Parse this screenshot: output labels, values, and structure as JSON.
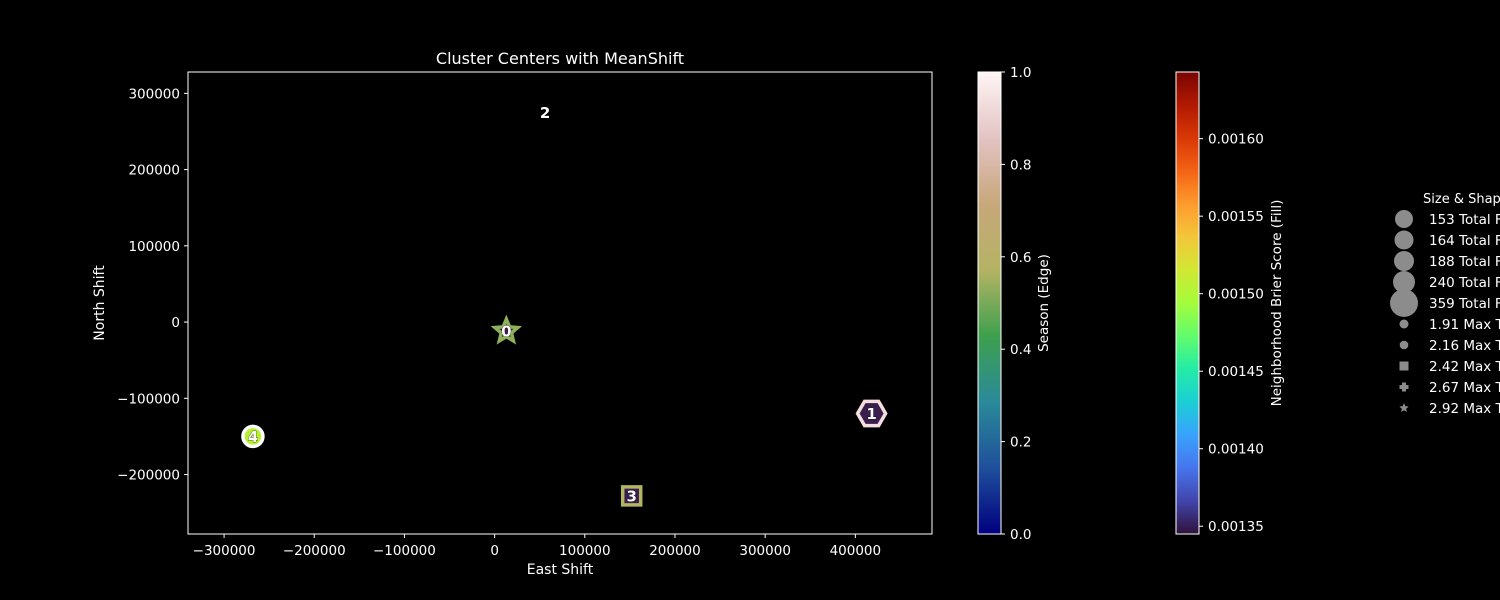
{
  "chart_data": {
    "type": "scatter",
    "title": "Cluster Centers with MeanShift",
    "xlabel": "East Shift",
    "ylabel": "North Shift",
    "xlim": [
      -340000,
      485000
    ],
    "ylim": [
      -278000,
      328000
    ],
    "x_ticks": [
      -300000,
      -200000,
      -100000,
      0,
      100000,
      200000,
      300000,
      400000
    ],
    "x_tick_labels": [
      "−300000",
      "−200000",
      "−100000",
      "0",
      "100000",
      "200000",
      "300000",
      "400000"
    ],
    "y_ticks": [
      -200000,
      -100000,
      0,
      100000,
      200000,
      300000
    ],
    "y_tick_labels": [
      "−200000",
      "−100000",
      "0",
      "100000",
      "200000",
      "300000"
    ],
    "grid": false,
    "points": [
      {
        "label": "0",
        "x": 13000,
        "y": -12000,
        "marker": "star",
        "edge_color": "#8fb15a",
        "fill_color": "#3a1e4e",
        "size": 12
      },
      {
        "label": "1",
        "x": 418000,
        "y": -120000,
        "marker": "hexagon",
        "edge_color": "#f4dede",
        "fill_color": "#3a1e4e",
        "size": 14
      },
      {
        "label": "2",
        "x": 56000,
        "y": 275000,
        "marker": "none",
        "edge_color": "#ffffff",
        "fill_color": "#ffffff",
        "size": 0
      },
      {
        "label": "3",
        "x": 152000,
        "y": -228000,
        "marker": "square",
        "edge_color": "#b1b460",
        "fill_color": "#3a1e4e",
        "size": 9
      },
      {
        "label": "4",
        "x": -268000,
        "y": -150000,
        "marker": "circle",
        "edge_color": "#ffffff",
        "fill_color": "#b6f02e",
        "size": 10
      }
    ],
    "colorbars": [
      {
        "label": "Season (Edge)",
        "ticks": [
          "0.0",
          "0.2",
          "0.4",
          "0.6",
          "0.8",
          "1.0"
        ],
        "tick_values": [
          0.0,
          0.2,
          0.4,
          0.6,
          0.8,
          1.0
        ],
        "range": [
          0.0,
          1.0
        ],
        "colormap": [
          "#000080",
          "#1f4f9b",
          "#2a8a9a",
          "#3ea04e",
          "#b4b364",
          "#c7a77a",
          "#e3c3c3",
          "#fff5f5"
        ]
      },
      {
        "label": "Neighborhood Brier Score (Fill)",
        "ticks": [
          "0.00135",
          "0.00140",
          "0.00145",
          "0.00150",
          "0.00155",
          "0.00160"
        ],
        "tick_values": [
          0.00135,
          0.0014,
          0.00145,
          0.0015,
          0.00155,
          0.0016
        ],
        "range": [
          0.001345,
          0.001643
        ],
        "colormap": [
          "#30123b",
          "#4145ab",
          "#4675ed",
          "#39a2fc",
          "#1bcfd4",
          "#24eca6",
          "#61fc6c",
          "#a4fc3b",
          "#d1e834",
          "#f3c63a",
          "#fe9b2d",
          "#f36315",
          "#d93806",
          "#b11901",
          "#7a0403"
        ]
      }
    ],
    "legend": {
      "title": "Size & Shap",
      "placement": "right, clipped",
      "entries": [
        {
          "label": "153 Total F",
          "marker": "circle",
          "size": 9
        },
        {
          "label": "164 Total F",
          "marker": "circle",
          "size": 9.5
        },
        {
          "label": "188 Total F",
          "marker": "circle",
          "size": 10
        },
        {
          "label": "240 Total F",
          "marker": "circle",
          "size": 11
        },
        {
          "label": "359 Total F",
          "marker": "circle",
          "size": 14
        },
        {
          "label": "1.91 Max T",
          "marker": "circle",
          "size": 4.5
        },
        {
          "label": "2.16 Max T",
          "marker": "octagon",
          "size": 4.5
        },
        {
          "label": "2.42 Max T",
          "marker": "square",
          "size": 4.5
        },
        {
          "label": "2.67 Max T",
          "marker": "plus",
          "size": 4.5
        },
        {
          "label": "2.92 Max T",
          "marker": "star",
          "size": 5
        }
      ]
    }
  }
}
